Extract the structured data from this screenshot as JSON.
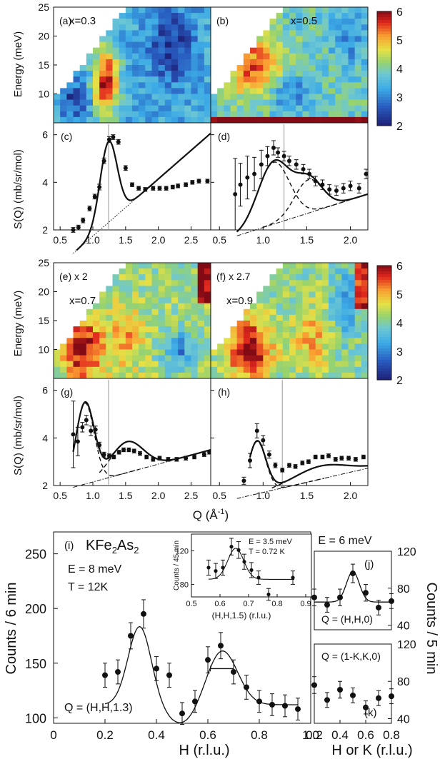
{
  "figure": {
    "energy_label": "Energy (meV)",
    "sq_label": "S(Q) (mb/sr/mol)",
    "q_label": "Q (Å",
    "q_label_sup": "-1",
    "q_label_close": ")",
    "h_label": "H (r.l.u.)",
    "hk_label": "H or K (r.l.u.)",
    "counts6_label": "Counts / 6 min",
    "counts5_label": "Counts / 5 min",
    "energy_ticks": [
      "25",
      "20",
      "15",
      "10"
    ],
    "colorbar_ticks": [
      "6",
      "5",
      "4",
      "3",
      "2"
    ]
  },
  "chart_data": [
    {
      "id": "a",
      "type": "heatmap",
      "panel_label": "(a)",
      "annotation": "x=0.3",
      "xlim": [
        0.4,
        2.8
      ],
      "ylim": [
        5,
        25
      ],
      "zlim": [
        2,
        6
      ],
      "ylabel": "Energy (meV)",
      "yticks": [
        10,
        15,
        20,
        25
      ],
      "features": [
        {
          "Q": 1.2,
          "E": 12,
          "S": 6,
          "width_Q": 0.13
        }
      ],
      "background": 3.4
    },
    {
      "id": "b",
      "type": "heatmap",
      "panel_label": "(b)",
      "annotation": "x=0.5",
      "xlim": [
        0.4,
        2.2
      ],
      "ylim": [
        5,
        25
      ],
      "zlim": [
        2,
        6
      ],
      "features": [
        {
          "Q": 0.9,
          "E": 15,
          "S": 5.4,
          "width_Q": 0.25
        }
      ],
      "background": 3.8
    },
    {
      "id": "c",
      "type": "scatter",
      "panel_label": "(c)",
      "xlim": [
        0.4,
        2.8
      ],
      "ylim": [
        2,
        6.5
      ],
      "ylabel": "S(Q) (mb/sr/mol)",
      "yticks": [
        2,
        4,
        6
      ],
      "xticks": [
        "0.5",
        "1.0",
        "1.5",
        "2.0",
        "2.5"
      ],
      "vline": 1.24,
      "points": [
        {
          "x": 0.7,
          "y": 2.0,
          "err": 0.1
        },
        {
          "x": 0.78,
          "y": 2.1,
          "err": 0.1
        },
        {
          "x": 0.85,
          "y": 2.4,
          "err": 0.1
        },
        {
          "x": 0.95,
          "y": 2.9,
          "err": 0.1
        },
        {
          "x": 1.03,
          "y": 3.4,
          "err": 0.1
        },
        {
          "x": 1.1,
          "y": 3.8,
          "err": 0.12
        },
        {
          "x": 1.17,
          "y": 4.9,
          "err": 0.12
        },
        {
          "x": 1.25,
          "y": 5.8,
          "err": 0.12
        },
        {
          "x": 1.31,
          "y": 5.9,
          "err": 0.1
        },
        {
          "x": 1.39,
          "y": 5.7,
          "err": 0.1
        },
        {
          "x": 1.5,
          "y": 4.6,
          "err": 0.1
        },
        {
          "x": 1.6,
          "y": 3.9,
          "err": 0.08
        },
        {
          "x": 1.7,
          "y": 3.75,
          "err": 0.08
        },
        {
          "x": 1.8,
          "y": 3.7,
          "err": 0.08
        },
        {
          "x": 1.92,
          "y": 3.75,
          "err": 0.08
        },
        {
          "x": 2.02,
          "y": 3.75,
          "err": 0.08
        },
        {
          "x": 2.12,
          "y": 3.75,
          "err": 0.08
        },
        {
          "x": 2.22,
          "y": 3.8,
          "err": 0.08
        },
        {
          "x": 2.3,
          "y": 3.85,
          "err": 0.08
        },
        {
          "x": 2.42,
          "y": 3.9,
          "err": 0.08
        },
        {
          "x": 2.52,
          "y": 4.0,
          "err": 0.08
        },
        {
          "x": 2.62,
          "y": 4.05,
          "err": 0.08
        },
        {
          "x": 2.75,
          "y": 4.05,
          "err": 0.08
        }
      ],
      "model": {
        "type": "gaussian+linear",
        "center": 1.24,
        "amplitude": 3.4,
        "sigma": 0.13,
        "slope": 2.4,
        "offset": 0.3
      }
    },
    {
      "id": "d",
      "type": "scatter",
      "panel_label": "(d)",
      "xlim": [
        0.4,
        2.2
      ],
      "ylim": [
        2,
        6.5
      ],
      "yticks": [
        2,
        4,
        6
      ],
      "xticks": [
        "0.5",
        "1.0",
        "1.5",
        "2.0"
      ],
      "vline": 1.24,
      "points": [
        {
          "x": 0.68,
          "y": 3.5,
          "err": 1.5
        },
        {
          "x": 0.74,
          "y": 3.9,
          "err": 0.9
        },
        {
          "x": 0.82,
          "y": 4.2,
          "err": 0.9
        },
        {
          "x": 0.9,
          "y": 4.35,
          "err": 0.7
        },
        {
          "x": 0.98,
          "y": 4.75,
          "err": 0.6
        },
        {
          "x": 1.05,
          "y": 5.1,
          "err": 0.4
        },
        {
          "x": 1.12,
          "y": 5.45,
          "err": 0.3
        },
        {
          "x": 1.17,
          "y": 5.25,
          "err": 0.2
        },
        {
          "x": 1.24,
          "y": 5.1,
          "err": 0.2
        },
        {
          "x": 1.3,
          "y": 4.9,
          "err": 0.2
        },
        {
          "x": 1.38,
          "y": 4.75,
          "err": 0.2
        },
        {
          "x": 1.46,
          "y": 4.55,
          "err": 0.2
        },
        {
          "x": 1.53,
          "y": 4.35,
          "err": 0.2
        },
        {
          "x": 1.6,
          "y": 4.05,
          "err": 0.2
        },
        {
          "x": 1.68,
          "y": 3.9,
          "err": 0.2
        },
        {
          "x": 1.76,
          "y": 3.7,
          "err": 0.2
        },
        {
          "x": 1.84,
          "y": 3.65,
          "err": 0.2
        },
        {
          "x": 1.92,
          "y": 3.75,
          "err": 0.2
        },
        {
          "x": 2.0,
          "y": 3.85,
          "err": 0.2
        },
        {
          "x": 2.1,
          "y": 3.75,
          "err": 0.2
        },
        {
          "x": 2.18,
          "y": 4.35,
          "err": 0.2
        }
      ],
      "model": {
        "type": "2gaussian+linear",
        "center1": 1.12,
        "amp1": 2.6,
        "sigma1": 0.18,
        "center2": 1.52,
        "amp2": 1.4,
        "sigma2": 0.16,
        "slope": 1.17,
        "offset": 1.4
      }
    },
    {
      "id": "e",
      "type": "heatmap",
      "panel_label": "(e) x 2",
      "annotation": "x=0.7",
      "xlim": [
        0.4,
        2.8
      ],
      "ylim": [
        5,
        25
      ],
      "zlim": [
        2,
        6
      ],
      "ylabel": "Energy (meV)",
      "yticks": [
        10,
        15,
        20,
        25
      ],
      "features": [
        {
          "Q": 0.85,
          "E": 10,
          "S": 6,
          "width_Q": 0.2
        },
        {
          "Q": 1.5,
          "E": 12,
          "S": 5,
          "width_Q": 0.2
        }
      ],
      "background": 4.2
    },
    {
      "id": "f",
      "type": "heatmap",
      "panel_label": "(f)  x 2.7",
      "annotation": "x=0.9",
      "xlim": [
        0.4,
        2.2
      ],
      "ylim": [
        5,
        25
      ],
      "zlim": [
        2,
        6
      ],
      "features": [
        {
          "Q": 0.85,
          "E": 10,
          "S": 6,
          "width_Q": 0.18
        },
        {
          "Q": 1.55,
          "E": 12,
          "S": 5,
          "width_Q": 0.15
        }
      ],
      "background": 4.1
    },
    {
      "id": "g",
      "type": "scatter",
      "panel_label": "(g)",
      "xlim": [
        0.4,
        2.8
      ],
      "ylim": [
        2,
        6.5
      ],
      "ylabel": "S(Q) (mb/sr/mol)",
      "yticks": [
        2,
        4,
        6
      ],
      "xticks": [
        "0.5",
        "1.0",
        "1.5",
        "2.0",
        "2.5"
      ],
      "vline": 1.24,
      "points": [
        {
          "x": 0.7,
          "y": 4.15,
          "err": 1.4
        },
        {
          "x": 0.77,
          "y": 3.85,
          "err": 0.6
        },
        {
          "x": 0.84,
          "y": 4.45,
          "err": 0.2
        },
        {
          "x": 0.9,
          "y": 4.75,
          "err": 0.2
        },
        {
          "x": 0.97,
          "y": 4.3,
          "err": 0.2
        },
        {
          "x": 1.04,
          "y": 4.35,
          "err": 0.15
        },
        {
          "x": 1.1,
          "y": 3.7,
          "err": 0.12
        },
        {
          "x": 1.17,
          "y": 3.3,
          "err": 0.1
        },
        {
          "x": 1.25,
          "y": 3.25,
          "err": 0.08
        },
        {
          "x": 1.32,
          "y": 3.2,
          "err": 0.08
        },
        {
          "x": 1.4,
          "y": 3.4,
          "err": 0.08
        },
        {
          "x": 1.47,
          "y": 3.5,
          "err": 0.08
        },
        {
          "x": 1.55,
          "y": 3.5,
          "err": 0.08
        },
        {
          "x": 1.63,
          "y": 3.45,
          "err": 0.08
        },
        {
          "x": 1.72,
          "y": 3.35,
          "err": 0.08
        },
        {
          "x": 1.82,
          "y": 3.2,
          "err": 0.08
        },
        {
          "x": 1.92,
          "y": 3.1,
          "err": 0.08
        },
        {
          "x": 2.02,
          "y": 3.15,
          "err": 0.08
        },
        {
          "x": 2.15,
          "y": 3.1,
          "err": 0.08
        },
        {
          "x": 2.28,
          "y": 3.1,
          "err": 0.08
        },
        {
          "x": 2.42,
          "y": 3.15,
          "err": 0.08
        },
        {
          "x": 2.55,
          "y": 3.2,
          "err": 0.08
        },
        {
          "x": 2.7,
          "y": 3.3,
          "err": 0.08
        },
        {
          "x": 2.78,
          "y": 3.4,
          "err": 0.08
        }
      ],
      "model": {
        "type": "2gaussian+linear",
        "center1": 0.88,
        "amp1": 3.4,
        "sigma1": 0.14,
        "center2": 1.52,
        "amp2": 1.3,
        "sigma2": 0.25,
        "slope": 0.75,
        "offset": 1.7
      }
    },
    {
      "id": "h",
      "type": "scatter",
      "panel_label": "(h)",
      "xlim": [
        0.4,
        2.2
      ],
      "ylim": [
        2,
        6.5
      ],
      "yticks": [
        2,
        4,
        6
      ],
      "xticks": [
        "0.5",
        "1.0",
        "1.5",
        "2.0"
      ],
      "vline": 1.22,
      "points": [
        {
          "x": 0.78,
          "y": 2.2,
          "err": 0.15
        },
        {
          "x": 0.85,
          "y": 3.05,
          "err": 0.3
        },
        {
          "x": 0.93,
          "y": 4.3,
          "err": 0.3
        },
        {
          "x": 1.0,
          "y": 3.9,
          "err": 0.2
        },
        {
          "x": 1.07,
          "y": 3.3,
          "err": 0.15
        },
        {
          "x": 1.14,
          "y": 2.85,
          "err": 0.1
        },
        {
          "x": 1.22,
          "y": 2.65,
          "err": 0.08
        },
        {
          "x": 1.3,
          "y": 2.85,
          "err": 0.08
        },
        {
          "x": 1.37,
          "y": 2.8,
          "err": 0.08
        },
        {
          "x": 1.45,
          "y": 2.95,
          "err": 0.08
        },
        {
          "x": 1.52,
          "y": 3.0,
          "err": 0.08
        },
        {
          "x": 1.6,
          "y": 3.2,
          "err": 0.08
        },
        {
          "x": 1.68,
          "y": 3.2,
          "err": 0.08
        },
        {
          "x": 1.75,
          "y": 3.25,
          "err": 0.08
        },
        {
          "x": 1.83,
          "y": 3.1,
          "err": 0.08
        },
        {
          "x": 1.9,
          "y": 3.15,
          "err": 0.08
        },
        {
          "x": 1.98,
          "y": 3.15,
          "err": 0.08
        },
        {
          "x": 2.06,
          "y": 3.1,
          "err": 0.08
        },
        {
          "x": 2.15,
          "y": 3.2,
          "err": 0.08
        }
      ],
      "model": {
        "type": "2gaussian+linear",
        "center1": 0.93,
        "amp1": 2.2,
        "sigma1": 0.1,
        "center2": 1.65,
        "amp2": 0.55,
        "sigma2": 0.3,
        "slope": 0.85,
        "offset": 1.2
      }
    },
    {
      "id": "i",
      "type": "scatter",
      "panel_label": "(i)",
      "compound": "KFe",
      "compound_sub1": "2",
      "compound_mid": "As",
      "compound_sub2": "2",
      "energy_text": "E = 8 meV",
      "temp_text": "T = 12K",
      "q_text": "Q = (H,H,1.3)",
      "xlim": [
        0,
        1.0
      ],
      "ylim": [
        95,
        270
      ],
      "xlabel": "H (r.l.u.)",
      "ylabel": "Counts / 6 min",
      "xticks": [
        "0",
        "0.2",
        "0.4",
        "0.6",
        "0.8",
        "1.0"
      ],
      "yticks": [
        "100",
        "150",
        "200",
        "250"
      ],
      "points": [
        {
          "x": 0.2,
          "y": 139,
          "err": 11
        },
        {
          "x": 0.25,
          "y": 142,
          "err": 11
        },
        {
          "x": 0.3,
          "y": 175,
          "err": 12
        },
        {
          "x": 0.35,
          "y": 195,
          "err": 13
        },
        {
          "x": 0.4,
          "y": 145,
          "err": 11
        },
        {
          "x": 0.45,
          "y": 139,
          "err": 11
        },
        {
          "x": 0.5,
          "y": 104,
          "err": 10
        },
        {
          "x": 0.55,
          "y": 115,
          "err": 10
        },
        {
          "x": 0.6,
          "y": 153,
          "err": 12
        },
        {
          "x": 0.65,
          "y": 166,
          "err": 12
        },
        {
          "x": 0.7,
          "y": 142,
          "err": 11
        },
        {
          "x": 0.75,
          "y": 128,
          "err": 11
        },
        {
          "x": 0.8,
          "y": 115,
          "err": 10
        },
        {
          "x": 0.85,
          "y": 112,
          "err": 10
        },
        {
          "x": 0.9,
          "y": 111,
          "err": 10
        },
        {
          "x": 0.95,
          "y": 108,
          "err": 10
        }
      ],
      "resolution_bar": {
        "center": 0.655,
        "half_width": 0.045,
        "y": 145
      },
      "model": {
        "type": "2gaussian+const",
        "center1": 0.335,
        "amp1": 72,
        "sigma1": 0.045,
        "center2": 0.655,
        "amp2": 50,
        "sigma2": 0.06,
        "offset": 112
      }
    },
    {
      "id": "i-inset",
      "type": "scatter",
      "energy_text": "E = 3.5 meV",
      "temp_text": "T = 0.72 K",
      "xlabel": "(H,H,1.5) (r.l.u.)",
      "ylabel": "Counts / 45 min",
      "xlim": [
        0.5,
        0.92
      ],
      "ylim": [
        65,
        140
      ],
      "xticks": [
        "0.5",
        "0.6",
        "0.7",
        "0.8",
        "0.9"
      ],
      "yticks": [
        "80",
        "120"
      ],
      "points": [
        {
          "x": 0.56,
          "y": 100,
          "err": 9
        },
        {
          "x": 0.585,
          "y": 96,
          "err": 9
        },
        {
          "x": 0.61,
          "y": 100,
          "err": 9
        },
        {
          "x": 0.64,
          "y": 125,
          "err": 10
        },
        {
          "x": 0.665,
          "y": 121,
          "err": 10
        },
        {
          "x": 0.685,
          "y": 107,
          "err": 9
        },
        {
          "x": 0.71,
          "y": 97,
          "err": 9
        },
        {
          "x": 0.735,
          "y": 88,
          "err": 8
        },
        {
          "x": 0.77,
          "y": 68,
          "err": 7
        },
        {
          "x": 0.855,
          "y": 88,
          "err": 8
        }
      ],
      "model": {
        "type": "gaussian+const",
        "center": 0.655,
        "amp": 37,
        "sigma": 0.028,
        "offset": 86
      }
    },
    {
      "id": "j",
      "type": "scatter",
      "panel_label": "(j)",
      "header": "E = 6 meV",
      "q_text": "Q = (H,H,0)",
      "xlim": [
        0.2,
        0.8
      ],
      "ylim": [
        35,
        120
      ],
      "ylabel": "Counts / 5 min",
      "yticks": [
        "40",
        "80",
        "120"
      ],
      "points": [
        {
          "x": 0.2,
          "y": 70,
          "err": 9
        },
        {
          "x": 0.3,
          "y": 62,
          "err": 8
        },
        {
          "x": 0.4,
          "y": 70,
          "err": 9
        },
        {
          "x": 0.5,
          "y": 96,
          "err": 10
        },
        {
          "x": 0.6,
          "y": 75,
          "err": 9
        },
        {
          "x": 0.7,
          "y": 59,
          "err": 8
        },
        {
          "x": 0.8,
          "y": 66,
          "err": 8
        }
      ],
      "model": {
        "type": "gaussian+const",
        "center": 0.5,
        "amp": 33,
        "sigma": 0.05,
        "offset": 65
      }
    },
    {
      "id": "k",
      "type": "scatter",
      "panel_label": "(k)",
      "q_text": "Q = (1-K,K,0)",
      "xlim": [
        0.2,
        0.8
      ],
      "ylim": [
        35,
        120
      ],
      "xlabel": "H or K (r.l.u.)",
      "xticks": [
        "0.2",
        "0.4",
        "0.6",
        "0.8"
      ],
      "yticks": [
        "40",
        "80",
        "120"
      ],
      "points": [
        {
          "x": 0.2,
          "y": 76,
          "err": 9
        },
        {
          "x": 0.3,
          "y": 60,
          "err": 8
        },
        {
          "x": 0.4,
          "y": 71,
          "err": 9
        },
        {
          "x": 0.5,
          "y": 65,
          "err": 8
        },
        {
          "x": 0.6,
          "y": 52,
          "err": 7
        },
        {
          "x": 0.7,
          "y": 62,
          "err": 8
        },
        {
          "x": 0.8,
          "y": 64,
          "err": 8
        }
      ]
    }
  ]
}
